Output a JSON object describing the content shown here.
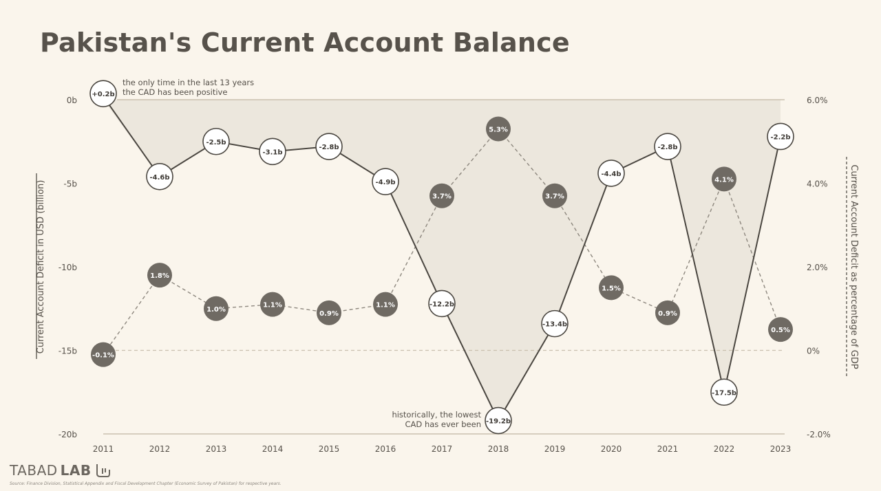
{
  "title": "Pakistan's Current Account Balance",
  "brand": {
    "light": "TABAD",
    "bold": "LAB"
  },
  "source_note": "Source: Finance Division, Statistical Appendix and Fiscal Development Chapter (Economic Survey of Pakistan) for respective years.",
  "colors": {
    "background": "#faf5ec",
    "usd_line": "#4a4640",
    "gdp_marker": "#6f6a63",
    "area_fill": "#e9e4db",
    "reference_line": "#c9c0ae",
    "text": "#555049"
  },
  "chart_data": {
    "type": "line",
    "categories": [
      "2011",
      "2012",
      "2013",
      "2014",
      "2015",
      "2016",
      "2017",
      "2018",
      "2019",
      "2020",
      "2021",
      "2022",
      "2023"
    ],
    "x_tick_labels": [
      "2011",
      "2012",
      "2013",
      "2014",
      "2015",
      "2016",
      "2017",
      "2018",
      "2019",
      "2020",
      "2021",
      "2022",
      "2023"
    ],
    "axes": {
      "left": {
        "label": "Current Account Deficit in USD (billion)",
        "ylim": [
          -20,
          0
        ],
        "ticks": [
          0,
          -5,
          -10,
          -15,
          -20
        ],
        "tick_labels": [
          "0b",
          "-5b",
          "-10b",
          "-15b",
          "-20b"
        ]
      },
      "right": {
        "label": "Current Account Deficit as percentage of GDP",
        "ylim": [
          -2,
          6
        ],
        "ticks": [
          6,
          4,
          2,
          0,
          -2
        ],
        "tick_labels": [
          "6.0%",
          "4.0%",
          "2.0%",
          "0%",
          "-2.0%"
        ]
      }
    },
    "series": [
      {
        "axis": "left",
        "style": "solid-line-white-markers",
        "values": [
          0.2,
          -4.6,
          -2.5,
          -3.1,
          -2.8,
          -4.9,
          -12.2,
          -19.2,
          -13.4,
          -4.4,
          -2.8,
          -17.5,
          -2.2
        ],
        "labels": [
          "+0.2b",
          "-4.6b",
          "-2.5b",
          "-3.1b",
          "-2.8b",
          "-4.9b",
          "-12.2b",
          "-19.2b",
          "-13.4b",
          "-4.4b",
          "-2.8b",
          "-17.5b",
          "-2.2b"
        ]
      },
      {
        "axis": "right",
        "style": "dashed-line-dark-markers",
        "values": [
          -0.1,
          1.8,
          1.0,
          1.1,
          0.9,
          1.1,
          3.7,
          5.3,
          3.7,
          1.5,
          0.9,
          4.1,
          0.5
        ],
        "labels": [
          "-0.1%",
          "1.8%",
          "1.0%",
          "1.1%",
          "0.9%",
          "1.1%",
          "3.7%",
          "5.3%",
          "3.7%",
          "1.5%",
          "0.9%",
          "4.1%",
          "0.5%"
        ]
      }
    ],
    "annotations": [
      {
        "year": "2011",
        "lines": [
          "the only time in the last 13 years",
          "the CAD has been positive"
        ]
      },
      {
        "year": "2018",
        "lines": [
          "historically, the lowest",
          "CAD has ever been"
        ]
      }
    ],
    "grid": false,
    "legend": "none"
  }
}
